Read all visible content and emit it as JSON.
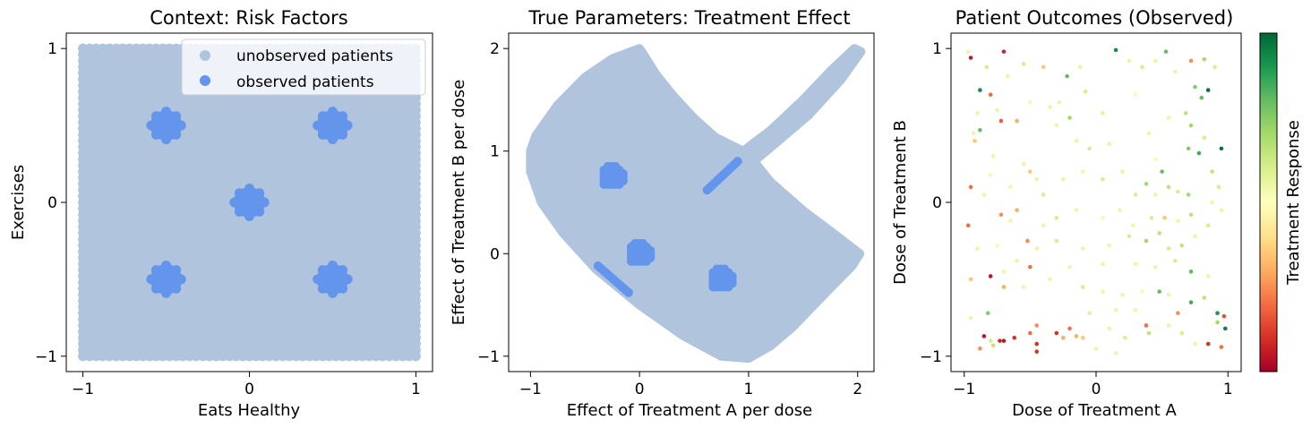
{
  "chart_data": [
    {
      "type": "scatter",
      "title": "Context: Risk Factors",
      "xlabel": "Eats Healthy",
      "ylabel": "Exercises",
      "xlim": [
        -1.1,
        1.1
      ],
      "ylim": [
        -1.1,
        1.1
      ],
      "xticks": [
        -1,
        0,
        1
      ],
      "yticks": [
        -1,
        0,
        1
      ],
      "xtick_labels": [
        "−1",
        "0",
        "1"
      ],
      "ytick_labels": [
        "−1",
        "0",
        "1"
      ],
      "legend": {
        "placement": "top-right",
        "entries": [
          "unobserved patients",
          "observed patients"
        ]
      },
      "colors": {
        "unobserved": "#b0c4de",
        "observed": "#6495ed"
      },
      "unobserved_region": {
        "x": [
          -1,
          1
        ],
        "y": [
          -1,
          1
        ],
        "grid_step": 0.04
      },
      "observed_cluster_centers": [
        [
          -0.5,
          0.5
        ],
        [
          0.5,
          0.5
        ],
        [
          0,
          0
        ],
        [
          -0.5,
          -0.5
        ],
        [
          0.5,
          -0.5
        ]
      ],
      "observed_cluster_radius": 0.09
    },
    {
      "type": "scatter",
      "title": "True Parameters: Treatment Effect",
      "xlabel": "Effect of Treatment A per dose",
      "ylabel": "Effect of Treatment B per dose",
      "xlim": [
        -1.2,
        2.15
      ],
      "ylim": [
        -1.15,
        2.15
      ],
      "xticks": [
        -1,
        0,
        1,
        2
      ],
      "yticks": [
        -1,
        0,
        1,
        2
      ],
      "xtick_labels": [
        "−1",
        "0",
        "1",
        "2"
      ],
      "ytick_labels": [
        "−1",
        "0",
        "1",
        "2"
      ],
      "colors": {
        "unobserved": "#b0c4de",
        "observed": "#6495ed"
      },
      "region_outline": [
        [
          0,
          2
        ],
        [
          0.05,
          1.92
        ],
        [
          0.15,
          1.75
        ],
        [
          0.3,
          1.55
        ],
        [
          0.5,
          1.32
        ],
        [
          0.7,
          1.13
        ],
        [
          0.95,
          1.0
        ],
        [
          1.2,
          1.2
        ],
        [
          1.5,
          1.5
        ],
        [
          1.75,
          1.78
        ],
        [
          1.97,
          2.0
        ],
        [
          2.03,
          1.97
        ],
        [
          1.85,
          1.7
        ],
        [
          1.55,
          1.35
        ],
        [
          1.25,
          1.08
        ],
        [
          1.05,
          0.9
        ],
        [
          1.2,
          0.7
        ],
        [
          1.5,
          0.42
        ],
        [
          1.8,
          0.18
        ],
        [
          2.02,
          0.0
        ],
        [
          1.95,
          -0.12
        ],
        [
          1.8,
          -0.28
        ],
        [
          1.6,
          -0.5
        ],
        [
          1.4,
          -0.72
        ],
        [
          1.2,
          -0.9
        ],
        [
          1.0,
          -1.02
        ],
        [
          0.75,
          -1.0
        ],
        [
          0.4,
          -0.8
        ],
        [
          0.0,
          -0.5
        ],
        [
          -0.4,
          -0.15
        ],
        [
          -0.7,
          0.2
        ],
        [
          -0.9,
          0.5
        ],
        [
          -1.0,
          0.8
        ],
        [
          -1.0,
          1.0
        ],
        [
          -0.95,
          1.15
        ],
        [
          -0.75,
          1.45
        ],
        [
          -0.5,
          1.72
        ],
        [
          -0.25,
          1.9
        ]
      ],
      "observed_clusters": [
        [
          -0.25,
          0.75
        ],
        [
          0.0,
          0.0
        ],
        [
          0.75,
          -0.25
        ]
      ],
      "observed_cluster_radius": 0.11,
      "observed_lines": [
        {
          "from": [
            0.62,
            0.62
          ],
          "to": [
            0.9,
            0.9
          ]
        },
        {
          "from": [
            -0.38,
            -0.12
          ],
          "to": [
            -0.1,
            -0.38
          ]
        }
      ]
    },
    {
      "type": "scatter",
      "title": "Patient Outcomes (Observed)",
      "xlabel": "Dose of Treatment A",
      "ylabel": "Dose of Treatment B",
      "xlim": [
        -1.1,
        1.1
      ],
      "ylim": [
        -1.1,
        1.1
      ],
      "xticks": [
        -1,
        0,
        1
      ],
      "yticks": [
        -1,
        0,
        1
      ],
      "xtick_labels": [
        "−1",
        "0",
        "1"
      ],
      "ytick_labels": [
        "−1",
        "0",
        "1"
      ],
      "colorbar": {
        "label": "Treatment Response",
        "colormap": "RdYlGn",
        "range": [
          -1,
          1
        ]
      },
      "points": [
        [
          -0.97,
          0.98,
          0.1
        ],
        [
          -0.95,
          0.94,
          -0.9
        ],
        [
          -0.83,
          0.88,
          0.2
        ],
        [
          -0.7,
          0.98,
          -0.85
        ],
        [
          -0.88,
          0.73,
          0.85
        ],
        [
          -0.8,
          0.7,
          -0.6
        ],
        [
          -0.75,
          0.6,
          0.1
        ],
        [
          -0.72,
          0.53,
          -0.65
        ],
        [
          -0.9,
          0.58,
          0.1
        ],
        [
          -0.93,
          0.45,
          0.1
        ],
        [
          -0.88,
          0.47,
          0.6
        ],
        [
          -0.92,
          0.4,
          -0.3
        ],
        [
          -0.67,
          0.82,
          0.1
        ],
        [
          -0.55,
          0.9,
          0.2
        ],
        [
          -0.4,
          0.88,
          -0.3
        ],
        [
          -0.6,
          0.53,
          -0.4
        ],
        [
          -0.5,
          0.65,
          0.05
        ],
        [
          -0.35,
          0.62,
          0.1
        ],
        [
          -0.22,
          0.82,
          0.6
        ],
        [
          -0.12,
          0.88,
          0.1
        ],
        [
          -0.08,
          0.72,
          0.2
        ],
        [
          -0.28,
          0.65,
          0.1
        ],
        [
          -0.2,
          0.55,
          0.4
        ],
        [
          -0.3,
          0.5,
          0.1
        ],
        [
          -0.15,
          0.4,
          0.1
        ],
        [
          -0.05,
          0.35,
          0.2
        ],
        [
          0.05,
          0.58,
          0.15
        ],
        [
          0.1,
          0.38,
          0.1
        ],
        [
          0.15,
          0.99,
          0.85
        ],
        [
          0.25,
          0.92,
          0.1
        ],
        [
          0.35,
          0.88,
          0.2
        ],
        [
          0.3,
          0.7,
          0.05
        ],
        [
          0.45,
          0.92,
          0.1
        ],
        [
          0.53,
          0.98,
          0.6
        ],
        [
          0.6,
          0.85,
          0.1
        ],
        [
          0.72,
          0.92,
          -0.5
        ],
        [
          0.82,
          0.93,
          0.4
        ],
        [
          0.9,
          0.88,
          0.2
        ],
        [
          0.75,
          0.75,
          0.5
        ],
        [
          0.85,
          0.73,
          0.95
        ],
        [
          0.8,
          0.68,
          0.6
        ],
        [
          0.68,
          0.58,
          0.3
        ],
        [
          0.55,
          0.55,
          0.1
        ],
        [
          0.72,
          0.5,
          0.4
        ],
        [
          0.82,
          0.42,
          0.2
        ],
        [
          0.7,
          0.35,
          0.5
        ],
        [
          0.78,
          0.32,
          0.7
        ],
        [
          0.95,
          0.35,
          0.95
        ],
        [
          0.88,
          0.2,
          0.3
        ],
        [
          0.93,
          0.1,
          0.2
        ],
        [
          0.4,
          0.45,
          0.1
        ],
        [
          0.45,
          0.28,
          0.05
        ],
        [
          -0.78,
          0.3,
          0.1
        ],
        [
          -0.55,
          0.25,
          0.1
        ],
        [
          -0.5,
          0.2,
          -0.3
        ],
        [
          -0.45,
          0.15,
          0.1
        ],
        [
          -0.65,
          0.1,
          -0.1
        ],
        [
          -0.8,
          0.18,
          0.05
        ],
        [
          -0.95,
          0.1,
          -0.6
        ],
        [
          -0.85,
          0.05,
          0.1
        ],
        [
          -0.6,
          -0.05,
          -0.4
        ],
        [
          -0.4,
          0.05,
          0.2
        ],
        [
          -0.25,
          0.15,
          0.1
        ],
        [
          -0.1,
          0.2,
          0.1
        ],
        [
          0.05,
          0.15,
          0.2
        ],
        [
          0.2,
          0.2,
          0.1
        ],
        [
          0.3,
          0.05,
          0.2
        ],
        [
          0.38,
          0.12,
          0.4
        ],
        [
          0.45,
          0.05,
          0.1
        ],
        [
          0.5,
          0.2,
          0.6
        ],
        [
          0.55,
          0.1,
          0.3
        ],
        [
          0.62,
          0.07,
          0.2
        ],
        [
          0.7,
          0.05,
          0.4
        ],
        [
          0.88,
          0.0,
          0.1
        ],
        [
          -0.97,
          -0.15,
          -0.6
        ],
        [
          -0.72,
          -0.08,
          -0.5
        ],
        [
          -0.65,
          -0.12,
          0.1
        ],
        [
          -0.4,
          -0.15,
          0.1
        ],
        [
          -0.3,
          -0.1,
          0.2
        ],
        [
          -0.15,
          -0.05,
          0.1
        ],
        [
          0.05,
          -0.1,
          0.05
        ],
        [
          0.18,
          -0.05,
          0.1
        ],
        [
          0.28,
          -0.15,
          0.1
        ],
        [
          0.42,
          -0.1,
          0.2
        ],
        [
          0.52,
          -0.1,
          -0.3
        ],
        [
          0.62,
          -0.12,
          0.1
        ],
        [
          0.72,
          -0.08,
          0.3
        ],
        [
          0.85,
          -0.15,
          0.2
        ],
        [
          0.95,
          -0.05,
          0.1
        ],
        [
          -0.9,
          -0.3,
          0.1
        ],
        [
          -0.75,
          -0.28,
          0.05
        ],
        [
          -0.52,
          -0.25,
          -0.5
        ],
        [
          -0.45,
          -0.3,
          0.1
        ],
        [
          -0.3,
          -0.25,
          0.2
        ],
        [
          -0.1,
          -0.3,
          0.1
        ],
        [
          0.1,
          -0.28,
          0.1
        ],
        [
          0.25,
          -0.22,
          0.2
        ],
        [
          0.38,
          -0.25,
          0.4
        ],
        [
          0.48,
          -0.2,
          0.3
        ],
        [
          0.55,
          -0.3,
          0.2
        ],
        [
          0.65,
          -0.28,
          0.3
        ],
        [
          0.75,
          -0.22,
          0.1
        ],
        [
          -0.5,
          -0.42,
          -0.6
        ],
        [
          -0.6,
          -0.38,
          0.1
        ],
        [
          -0.7,
          -0.45,
          0.1
        ],
        [
          -0.8,
          -0.48,
          -0.9
        ],
        [
          -0.95,
          -0.5,
          -0.3
        ],
        [
          -0.2,
          -0.42,
          0.1
        ],
        [
          0.05,
          -0.4,
          0.1
        ],
        [
          0.3,
          -0.4,
          0.1
        ],
        [
          0.45,
          -0.42,
          0.1
        ],
        [
          0.6,
          -0.38,
          0.2
        ],
        [
          0.72,
          -0.45,
          0.6
        ],
        [
          0.85,
          -0.48,
          0.1
        ],
        [
          -0.95,
          -0.75,
          0.1
        ],
        [
          -0.82,
          -0.72,
          0.5
        ],
        [
          -0.7,
          -0.55,
          -0.4
        ],
        [
          -0.55,
          -0.55,
          0.1
        ],
        [
          -0.35,
          -0.5,
          0.1
        ],
        [
          -0.1,
          -0.55,
          0.2
        ],
        [
          0.05,
          -0.58,
          0.1
        ],
        [
          0.2,
          -0.6,
          0.1
        ],
        [
          0.35,
          -0.58,
          0.05
        ],
        [
          0.48,
          -0.58,
          0.6
        ],
        [
          0.55,
          -0.6,
          0.1
        ],
        [
          0.62,
          -0.72,
          -0.5
        ],
        [
          0.72,
          -0.65,
          0.7
        ],
        [
          0.82,
          -0.62,
          0.3
        ],
        [
          0.92,
          -0.72,
          0.8
        ],
        [
          0.97,
          -0.74,
          -0.7
        ],
        [
          0.98,
          -0.82,
          0.9
        ],
        [
          0.92,
          -0.78,
          0.4
        ],
        [
          -0.85,
          -0.87,
          -0.9
        ],
        [
          -0.88,
          -0.95,
          -0.5
        ],
        [
          -0.8,
          -0.9,
          0.2
        ],
        [
          -0.7,
          -0.9,
          -0.9
        ],
        [
          -0.62,
          -0.88,
          -0.8
        ],
        [
          -0.5,
          -0.85,
          -0.6
        ],
        [
          -0.45,
          -0.92,
          -0.8
        ],
        [
          -0.45,
          -0.8,
          -0.5
        ],
        [
          -0.3,
          -0.85,
          -0.8
        ],
        [
          -0.2,
          -0.82,
          -0.6
        ],
        [
          -0.25,
          -0.88,
          -0.4
        ],
        [
          -0.15,
          -0.87,
          -0.4
        ],
        [
          -0.1,
          -0.88,
          -0.3
        ],
        [
          0.1,
          -0.82,
          0.1
        ],
        [
          0.22,
          -0.88,
          0.2
        ],
        [
          0.38,
          -0.8,
          -0.6
        ],
        [
          0.4,
          -0.85,
          0.3
        ],
        [
          0.55,
          -0.8,
          0.1
        ],
        [
          0.65,
          -0.85,
          0.2
        ],
        [
          0.75,
          -0.92,
          0.1
        ],
        [
          0.85,
          -0.92,
          -0.8
        ],
        [
          0.95,
          -0.94,
          -0.6
        ],
        [
          -0.45,
          -0.97,
          -0.8
        ],
        [
          -0.73,
          -0.9,
          -0.85
        ],
        [
          0.0,
          -0.95,
          0.1
        ],
        [
          0.15,
          -0.98,
          0.1
        ],
        [
          -0.78,
          -0.93,
          0.3
        ],
        [
          0.3,
          -0.7,
          -0.1
        ],
        [
          0.15,
          -0.7,
          0.1
        ],
        [
          -0.05,
          -0.72,
          0.15
        ]
      ]
    }
  ]
}
